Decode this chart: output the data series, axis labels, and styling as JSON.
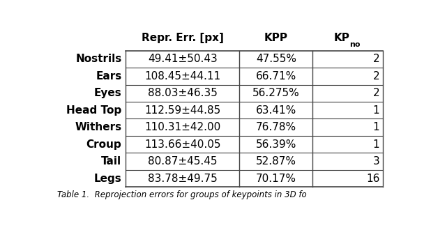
{
  "rows": [
    [
      "Nostrils",
      "49.41±50.43",
      "47.55%",
      "2"
    ],
    [
      "Ears",
      "108.45±44.11",
      "66.71%",
      "2"
    ],
    [
      "Eyes",
      "88.03±46.35",
      "56.275%",
      "2"
    ],
    [
      "Head Top",
      "112.59±44.85",
      "63.41%",
      "1"
    ],
    [
      "Withers",
      "110.31±42.00",
      "76.78%",
      "1"
    ],
    [
      "Croup",
      "113.66±40.05",
      "56.39%",
      "1"
    ],
    [
      "Tail",
      "80.87±45.45",
      "52.87%",
      "3"
    ],
    [
      "Legs",
      "83.78±49.75",
      "70.17%",
      "16"
    ]
  ],
  "background_color": "#ffffff",
  "text_color": "#000000",
  "line_color": "#444444",
  "font_size": 11,
  "header_font_size": 11,
  "caption": "Table 1.  Reprojection errors for groups of keypoints in 3D fo"
}
